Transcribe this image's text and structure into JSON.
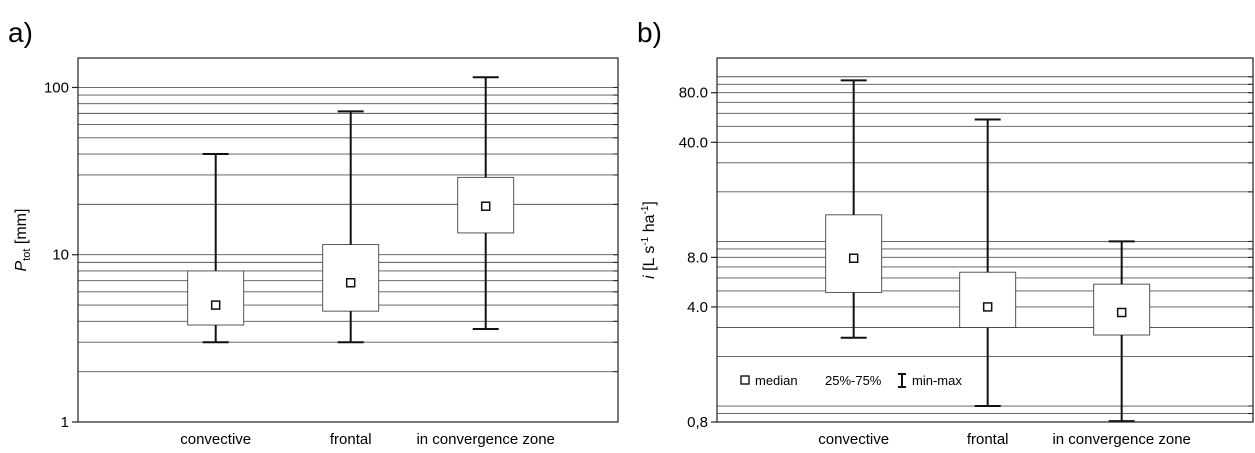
{
  "chart_data": [
    {
      "panel": "a)",
      "type": "box",
      "yscale": "log",
      "ylim": [
        1,
        150
      ],
      "ylabel_main": "P",
      "ylabel_sub": "tot",
      "ylabel_unit": " [mm]",
      "yticks": [
        {
          "v": 1,
          "label": "1"
        },
        {
          "v": 10,
          "label": "10"
        },
        {
          "v": 100,
          "label": "100"
        }
      ],
      "grid": true,
      "categories": [
        "convective",
        "frontal",
        "in convergence zone"
      ],
      "boxes": [
        {
          "category": "convective",
          "min": 3.0,
          "q1": 3.8,
          "median": 5.0,
          "q3": 8.0,
          "max": 40
        },
        {
          "category": "frontal",
          "min": 3.0,
          "q1": 4.6,
          "median": 6.8,
          "q3": 11.5,
          "max": 72
        },
        {
          "category": "in convergence zone",
          "min": 3.6,
          "q1": 13.5,
          "median": 19.5,
          "q3": 29,
          "max": 115
        }
      ]
    },
    {
      "panel": "b)",
      "type": "box",
      "yscale": "log",
      "ylim": [
        0.8,
        130
      ],
      "ylabel_main": "i",
      "ylabel_unit": " [L s",
      "ylabel_exp1": "-1",
      "ylabel_mid": " ha",
      "ylabel_exp2": "-1",
      "ylabel_end": "]",
      "yticks": [
        {
          "v": 0.8,
          "label": "0,8"
        },
        {
          "v": 4.0,
          "label": "4.0"
        },
        {
          "v": 8.0,
          "label": "8.0"
        },
        {
          "v": 40.0,
          "label": "40.0"
        },
        {
          "v": 80.0,
          "label": "80.0"
        }
      ],
      "grid": true,
      "categories": [
        "convective",
        "frontal",
        "in convergence zone"
      ],
      "boxes": [
        {
          "category": "convective",
          "min": 2.6,
          "q1": 4.9,
          "median": 7.9,
          "q3": 14.5,
          "max": 95
        },
        {
          "category": "frontal",
          "min": 1.0,
          "q1": 3.0,
          "median": 4.0,
          "q3": 6.5,
          "max": 55
        },
        {
          "category": "in convergence zone",
          "min": 0.81,
          "q1": 2.7,
          "median": 3.7,
          "q3": 5.5,
          "max": 10
        }
      ],
      "legend": {
        "placement": "bottom-left",
        "median": "median",
        "box": "25%-75%",
        "whisker": "min-max"
      }
    }
  ]
}
